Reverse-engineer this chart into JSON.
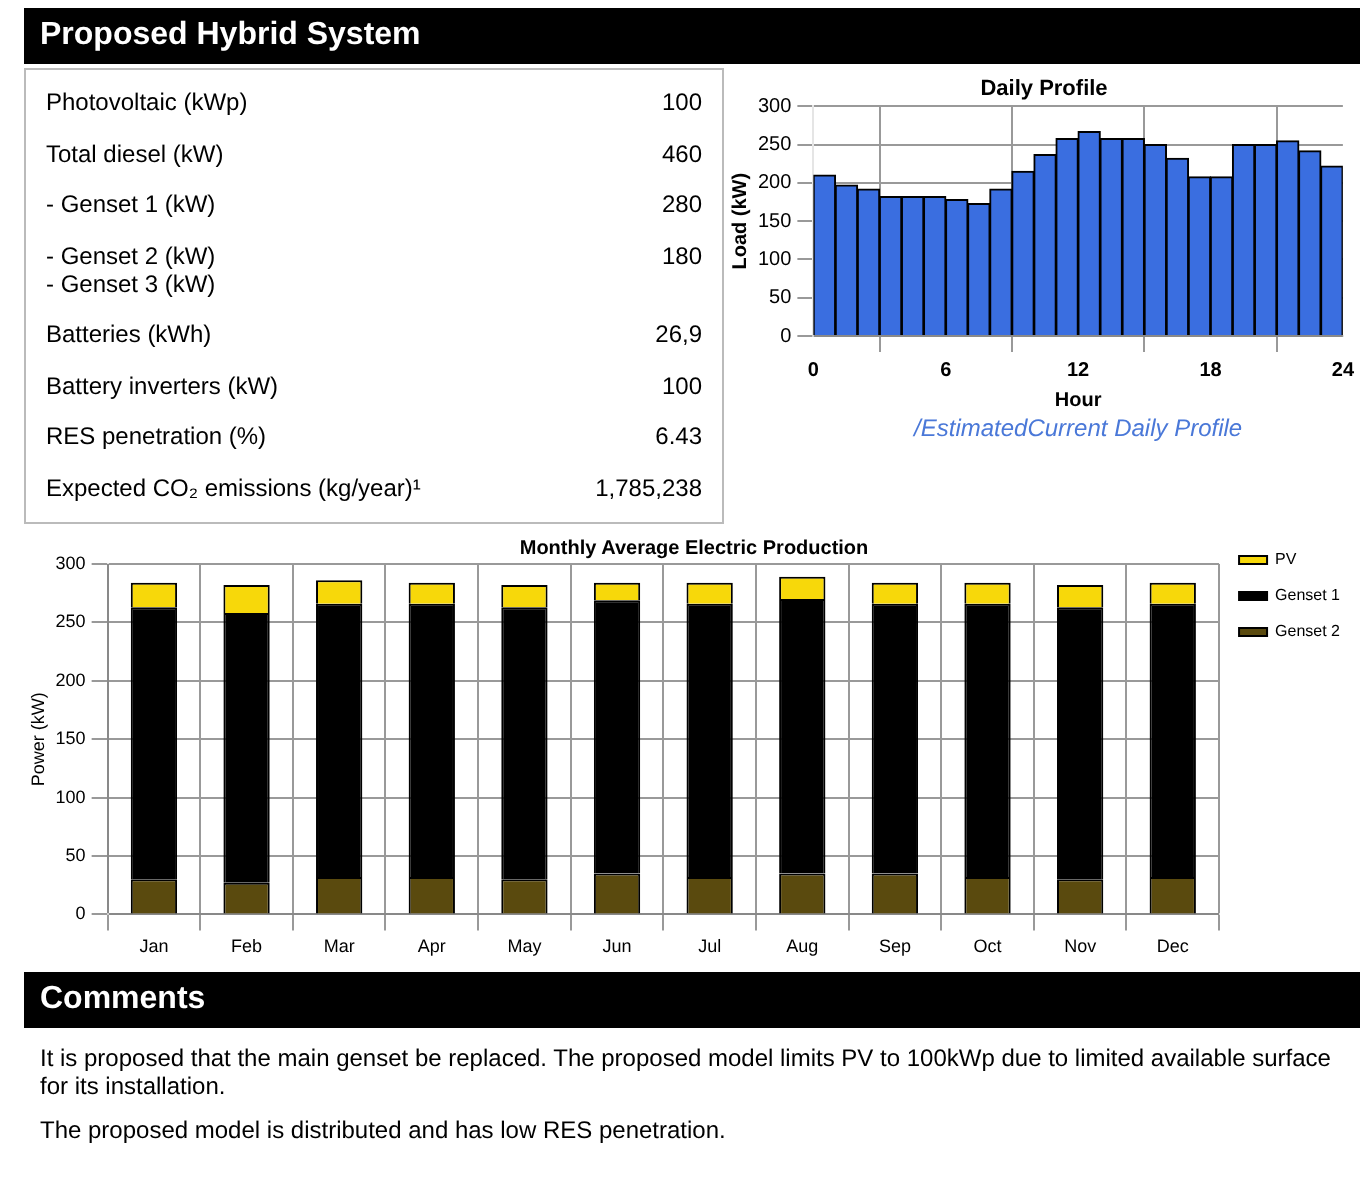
{
  "chart_data": [
    {
      "type": "other",
      "title": "Proposed Hybrid System",
      "annotations": [
        "Photovoltaic (kWp)",
        "100",
        "Total diesel (kW)",
        "460",
        "-      Genset 1 (kW)",
        "280",
        "-      Genset 2 (kW)\n-      Genset 3 (kW)",
        "180",
        "Batteries (kWh)",
        "26,9",
        "Battery inverters (kW)",
        "100",
        "RES penetration (%)",
        "6.43",
        "Expected CO₂ emissions (kg/year)¹",
        "1,785,238"
      ]
    },
    {
      "type": "histogram",
      "title": "Daily Profile",
      "xlabel": "Hour",
      "ylabel": "Load (kW)",
      "annotations": [
        "/EstimatedCurrent Daily Profile"
      ],
      "bins": [
        0,
        1,
        2,
        3,
        4,
        5,
        6,
        7,
        8,
        9,
        10,
        11,
        12,
        13,
        14,
        15,
        16,
        17,
        18,
        19,
        20,
        21,
        22,
        23,
        24
      ],
      "values": [
        210,
        197,
        192,
        182,
        182,
        182,
        178,
        173,
        192,
        215,
        237,
        258,
        267,
        258,
        258,
        250,
        232,
        208,
        208,
        250,
        250,
        255,
        242,
        222
      ],
      "color": "#3a6ee0",
      "xlim": [
        0,
        24
      ],
      "xticks": [
        0,
        6,
        12,
        18,
        24
      ],
      "ylim": [
        0,
        300
      ],
      "yticks": [
        0,
        50,
        100,
        150,
        200,
        250,
        300
      ],
      "grid": true
    },
    {
      "type": "bar",
      "stacked": true,
      "title": "Monthly Average Electric Production",
      "ylabel": "Power (kW)",
      "categories": [
        "Jan",
        "Feb",
        "Mar",
        "Apr",
        "May",
        "Jun",
        "Jul",
        "Aug",
        "Sep",
        "Oct",
        "Nov",
        "Dec"
      ],
      "series": [
        {
          "name": "Genset 2",
          "color": "#5a4a0e",
          "values": [
            30,
            27,
            32,
            32,
            30,
            35,
            32,
            35,
            35,
            32,
            30,
            32
          ]
        },
        {
          "name": "Genset 1",
          "color": "#000000",
          "values": [
            233,
            231,
            234,
            234,
            233,
            234,
            234,
            235,
            231,
            234,
            233,
            234
          ]
        },
        {
          "name": "PV",
          "color": "#f7d80a",
          "values": [
            21,
            24,
            20,
            18,
            19,
            15,
            18,
            19,
            18,
            18,
            19,
            18
          ]
        }
      ],
      "ylim": [
        0,
        300
      ],
      "yticks": [
        0,
        50,
        100,
        150,
        200,
        250,
        300
      ],
      "grid": true,
      "legend": "right"
    },
    {
      "type": "other",
      "title": "Comments",
      "annotations": [
        "It is proposed that the main genset be replaced. The proposed model limits PV to 100kWp due to limited available surface for its installation.",
        "The proposed model is distributed and has low RES penetration."
      ]
    }
  ]
}
